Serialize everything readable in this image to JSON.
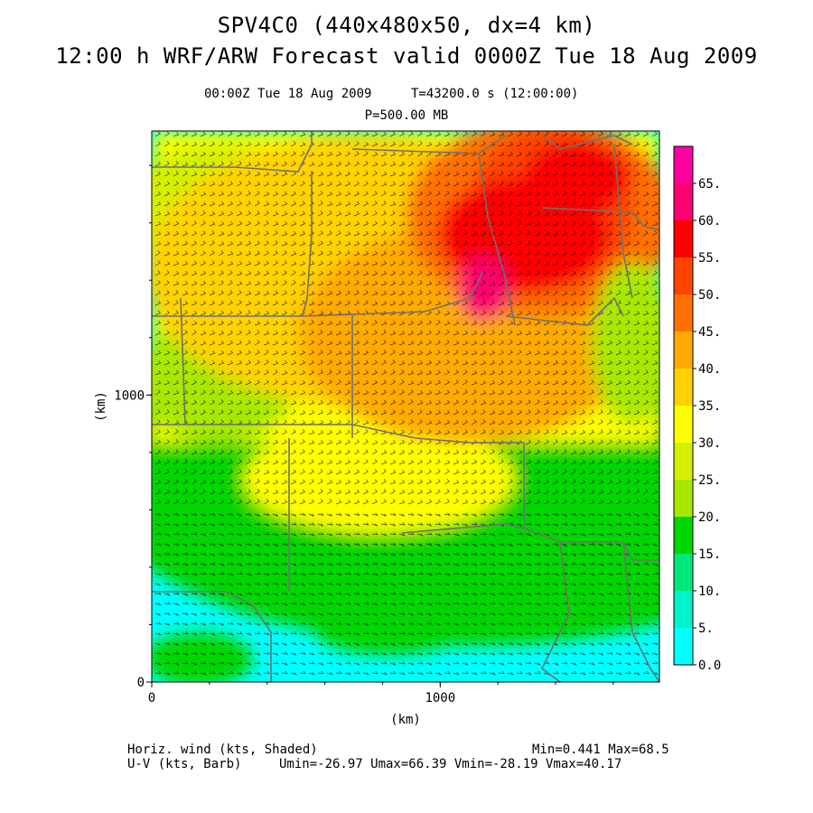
{
  "header": {
    "title_line1": "SPV4C0 (440x480x50, dx=4 km)",
    "title_line2": "12:00 h WRF/ARW Forecast valid 0000Z Tue 18 Aug 2009",
    "valid_time": "00:00Z Tue 18 Aug 2009",
    "forecast_seconds": "T=43200.0 s (12:00:00)",
    "pressure_level": "P=500.00 MB"
  },
  "footer": {
    "shaded_label": "Horiz. wind (kts, Shaded)",
    "barb_label": "U-V (kts, Barb)",
    "min_max": "Min=0.441 Max=68.5",
    "uv_stats": "Umin=-26.97 Umax=66.39 Vmin=-28.19 Vmax=40.17"
  },
  "colors": {
    "colorbar": [
      "#00ffff",
      "#00f2c8",
      "#00e87a",
      "#00d600",
      "#a8e800",
      "#d2f000",
      "#ffff00",
      "#ffd200",
      "#ffaa00",
      "#ff7000",
      "#ff4400",
      "#ff0000",
      "#ff0070",
      "#ff00a0"
    ],
    "barb_color": "#000000",
    "boundary_color": "#707070"
  },
  "chart_data": {
    "type": "heatmap",
    "title": "Horiz. wind",
    "xlabel": "(km)",
    "ylabel": "(km)",
    "x_ticks": [
      "0",
      "1000"
    ],
    "y_ticks": [
      "0",
      "1000"
    ],
    "xlim": [
      0,
      1760
    ],
    "ylim": [
      0,
      1920
    ],
    "colorbar": {
      "levels": [
        "0.0",
        "5.",
        "10.",
        "15.",
        "20.",
        "25.",
        "30.",
        "35.",
        "40.",
        "45.",
        "50.",
        "55.",
        "60.",
        "65."
      ],
      "units": "kts"
    },
    "field_min": 0.441,
    "field_max": 68.5
  }
}
